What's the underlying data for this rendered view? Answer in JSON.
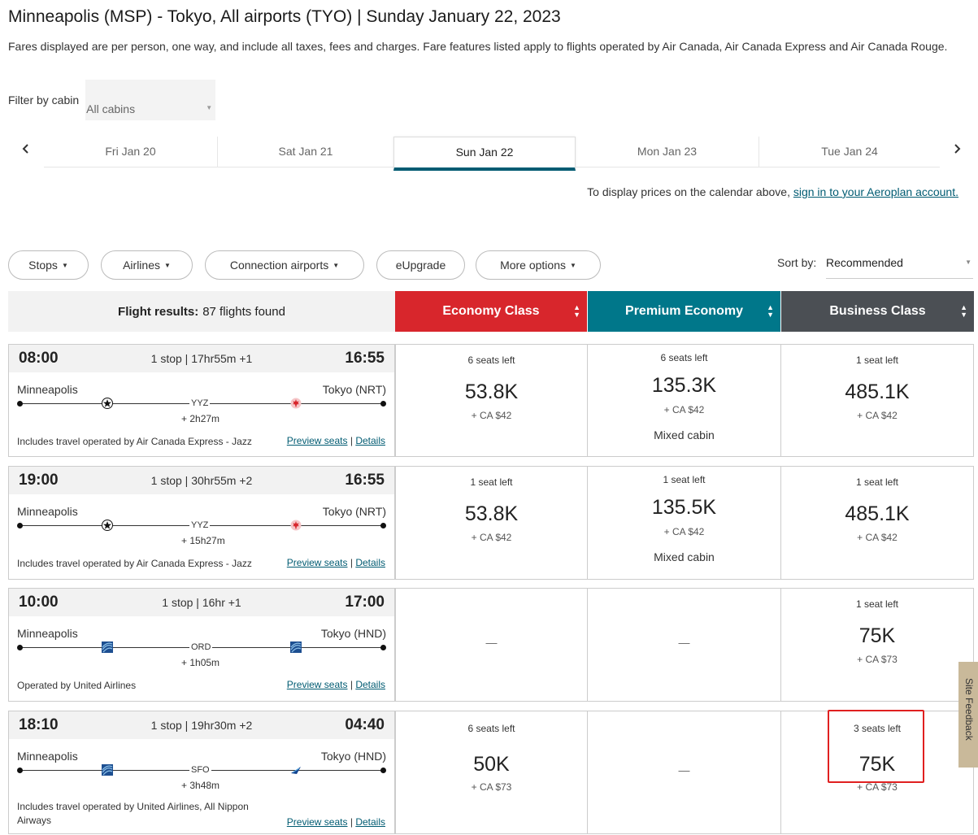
{
  "header": {
    "title": "Minneapolis (MSP) - Tokyo, All airports (TYO)  |  Sunday January 22, 2023",
    "subtitle": "Fares displayed are per person, one way, and include all taxes, fees and charges. Fare features listed apply to flights operated by Air Canada, Air Canada Express and Air Canada Rouge."
  },
  "filter": {
    "label": "Filter by cabin",
    "value": "All cabins"
  },
  "dates": {
    "prev": "‹",
    "next": "›",
    "tabs": [
      "Fri Jan 20",
      "Sat Jan 21",
      "Sun Jan 22",
      "Mon Jan 23",
      "Tue Jan 24"
    ],
    "active_index": 2
  },
  "signin": {
    "text": "To display prices on the calendar above,",
    "link": "sign in to your Aeroplan account."
  },
  "filters": {
    "stops": "Stops",
    "airlines": "Airlines",
    "connection": "Connection airports",
    "eupgrade": "eUpgrade",
    "more": "More options"
  },
  "sort": {
    "label": "Sort by:",
    "value": "Recommended"
  },
  "results": {
    "label": "Flight results:",
    "count": "87 flights found"
  },
  "classes": {
    "economy": {
      "label": "Economy Class",
      "color": "#d8262c"
    },
    "premium": {
      "label": "Premium Economy",
      "color": "#00778a"
    },
    "business": {
      "label": "Business Class",
      "color": "#4b4f54"
    }
  },
  "links": {
    "preview": "Preview seats",
    "sep": "|",
    "details": "Details"
  },
  "flights": [
    {
      "dep": "08:00",
      "arr": "16:55",
      "duration": "1 stop | 17hr55m +1",
      "origin": "Minneapolis",
      "dest": "Tokyo (NRT)",
      "via": "YYZ",
      "layover": "+ 2h27m",
      "logo1": "star-alliance-icon",
      "logo2": "maple-leaf-icon",
      "note": "Includes travel operated by Air Canada Express - Jazz",
      "economy": {
        "seats": "6 seats left",
        "price": "53.8K",
        "tax": "+ CA $42"
      },
      "premium": {
        "seats": "6 seats left",
        "price": "135.3K",
        "tax": "+ CA $42",
        "mixed": "Mixed cabin"
      },
      "business": {
        "seats": "1 seat left",
        "price": "485.1K",
        "tax": "+ CA $42"
      }
    },
    {
      "dep": "19:00",
      "arr": "16:55",
      "duration": "1 stop | 30hr55m +2",
      "origin": "Minneapolis",
      "dest": "Tokyo (NRT)",
      "via": "YYZ",
      "layover": "+ 15h27m",
      "logo1": "star-alliance-icon",
      "logo2": "maple-leaf-icon",
      "note": "Includes travel operated by Air Canada Express - Jazz",
      "economy": {
        "seats": "1 seat left",
        "price": "53.8K",
        "tax": "+ CA $42"
      },
      "premium": {
        "seats": "1 seat left",
        "price": "135.5K",
        "tax": "+ CA $42",
        "mixed": "Mixed cabin"
      },
      "business": {
        "seats": "1 seat left",
        "price": "485.1K",
        "tax": "+ CA $42"
      }
    },
    {
      "dep": "10:00",
      "arr": "17:00",
      "duration": "1 stop | 16hr +1",
      "origin": "Minneapolis",
      "dest": "Tokyo (HND)",
      "via": "ORD",
      "layover": "+ 1h05m",
      "logo1": "united-globe-icon",
      "logo2": "united-globe-icon",
      "note": "Operated by United Airlines",
      "economy": {
        "dash": "—"
      },
      "premium": {
        "dash": "—"
      },
      "business": {
        "seats": "1 seat left",
        "price": "75K",
        "tax": "+ CA $73"
      }
    },
    {
      "dep": "18:10",
      "arr": "04:40",
      "duration": "1 stop | 19hr30m +2",
      "origin": "Minneapolis",
      "dest": "Tokyo (HND)",
      "via": "SFO",
      "layover": "+ 3h48m",
      "logo1": "united-globe-icon",
      "logo2": "ana-icon",
      "note": "Includes travel operated by United Airlines, All Nippon Airways",
      "economy": {
        "seats": "6 seats left",
        "price": "50K",
        "tax": "+ CA $73"
      },
      "premium": {
        "dash": "—"
      },
      "business": {
        "seats": "3 seats left",
        "price": "75K",
        "tax": "+ CA $73"
      }
    }
  ],
  "feedback": "Site Feedback"
}
